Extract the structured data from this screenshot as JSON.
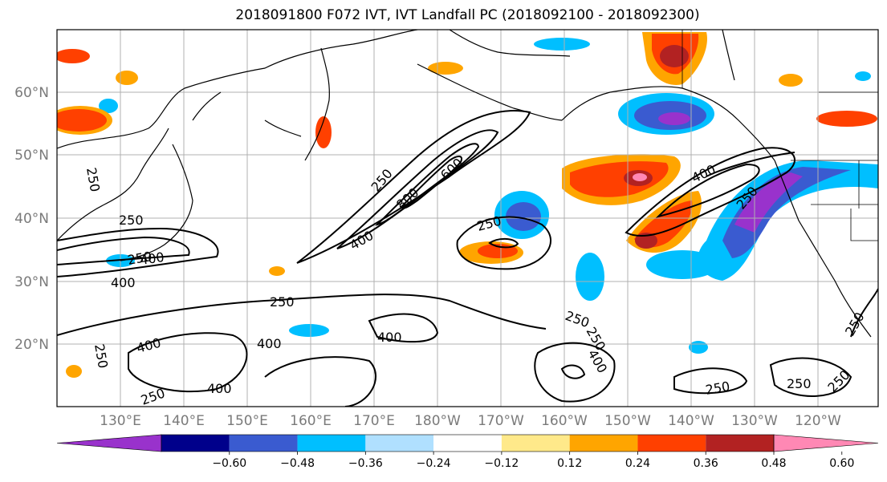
{
  "title": "2018091800 F072 IVT, IVT Landfall PC (2018092100 - 2018092300)",
  "lat_labels": [
    "60°N",
    "50°N",
    "40°N",
    "30°N",
    "20°N"
  ],
  "lon_labels": [
    "130°E",
    "140°E",
    "150°E",
    "160°E",
    "170°E",
    "180°W",
    "170°W",
    "160°W",
    "150°W",
    "140°W",
    "130°W",
    "120°W"
  ],
  "colorbar": {
    "colors": [
      "#9932cc",
      "#00008b",
      "#3a5bd0",
      "#00bfff",
      "#b0e0ff",
      "#ffffff",
      "#ffe98a",
      "#ffa500",
      "#ff4000",
      "#b22222",
      "#ff88b4"
    ],
    "tick_labels": [
      "−0.60",
      "−0.48",
      "−0.36",
      "−0.24",
      "−0.12",
      "0.12",
      "0.24",
      "0.36",
      "0.48",
      "0.60"
    ]
  },
  "contour_labels": [
    "250",
    "400",
    "600",
    "800",
    "250",
    "400",
    "250",
    "400",
    "250",
    "400",
    "250",
    "400",
    "250",
    "400",
    "250",
    "250",
    "250",
    "400",
    "250",
    "250",
    "250",
    "400",
    "400",
    "250",
    "250",
    "250"
  ],
  "colors": {
    "positive_strong": "#b22222",
    "positive_mid": "#ff4000",
    "positive_weak": "#ffa500",
    "negative_strong": "#9932cc",
    "negative_mid": "#3a5bd0",
    "negative_weak": "#00bfff",
    "grid": "#b0b0b0"
  }
}
